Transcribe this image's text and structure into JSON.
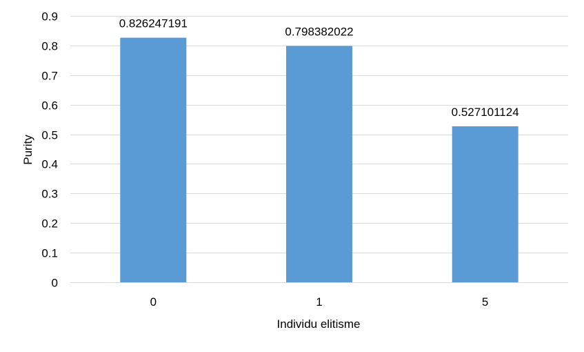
{
  "chart_data": {
    "type": "bar",
    "categories": [
      "0",
      "1",
      "5"
    ],
    "values": [
      0.826247191,
      0.798382022,
      0.527101124
    ],
    "data_labels": [
      "0.826247191",
      "0.798382022",
      "0.527101124"
    ],
    "title": "",
    "xlabel": "Individu elitisme",
    "ylabel": "Purity",
    "ylim": [
      0,
      0.9
    ],
    "yticks": [
      "0",
      "0.1",
      "0.2",
      "0.3",
      "0.4",
      "0.5",
      "0.6",
      "0.7",
      "0.8",
      "0.9"
    ],
    "grid": true,
    "legend": "none",
    "bar_color": "#5B9BD5",
    "grid_color": "#D9D9D9"
  }
}
